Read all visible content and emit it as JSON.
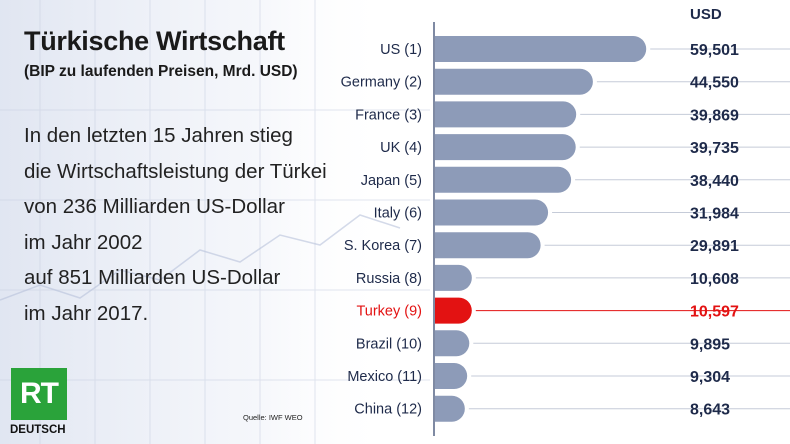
{
  "title": "Türkische Wirtschaft",
  "subtitle": "(BIP zu laufenden Preisen, Mrd. USD)",
  "body_lines": [
    "In den letzten 15 Jahren stieg",
    "die Wirtschaftsleistung der Türkei",
    "von 236 Milliarden US-Dollar",
    "im Jahr 2002",
    "auf 851 Milliarden US-Dollar",
    "im Jahr 2017."
  ],
  "unit_label": "USD",
  "logo": {
    "mark": "RT",
    "caption": "DEUTSCH"
  },
  "source": "Quelle: IWF WEO",
  "colors": {
    "bar": "#8d9bb8",
    "highlight": "#e31212",
    "label": "#1e2a4a"
  },
  "chart_data": {
    "type": "bar",
    "orientation": "horizontal",
    "categories": [
      "US (1)",
      "Germany (2)",
      "France (3)",
      "UK (4)",
      "Japan (5)",
      "Italy (6)",
      "S. Korea (7)",
      "Russia (8)",
      "Turkey (9)",
      "Brazil (10)",
      "Mexico (11)",
      "China (12)"
    ],
    "values": [
      59501,
      44550,
      39869,
      39735,
      38440,
      31984,
      29891,
      10608,
      10597,
      9895,
      9304,
      8643
    ],
    "value_labels": [
      "59,501",
      "44,550",
      "39,869",
      "39,735",
      "38,440",
      "31,984",
      "29,891",
      "10,608",
      "10,597",
      "9,895",
      "9,304",
      "8,643"
    ],
    "highlight": "Turkey (9)",
    "xlim": [
      0,
      60000
    ]
  }
}
